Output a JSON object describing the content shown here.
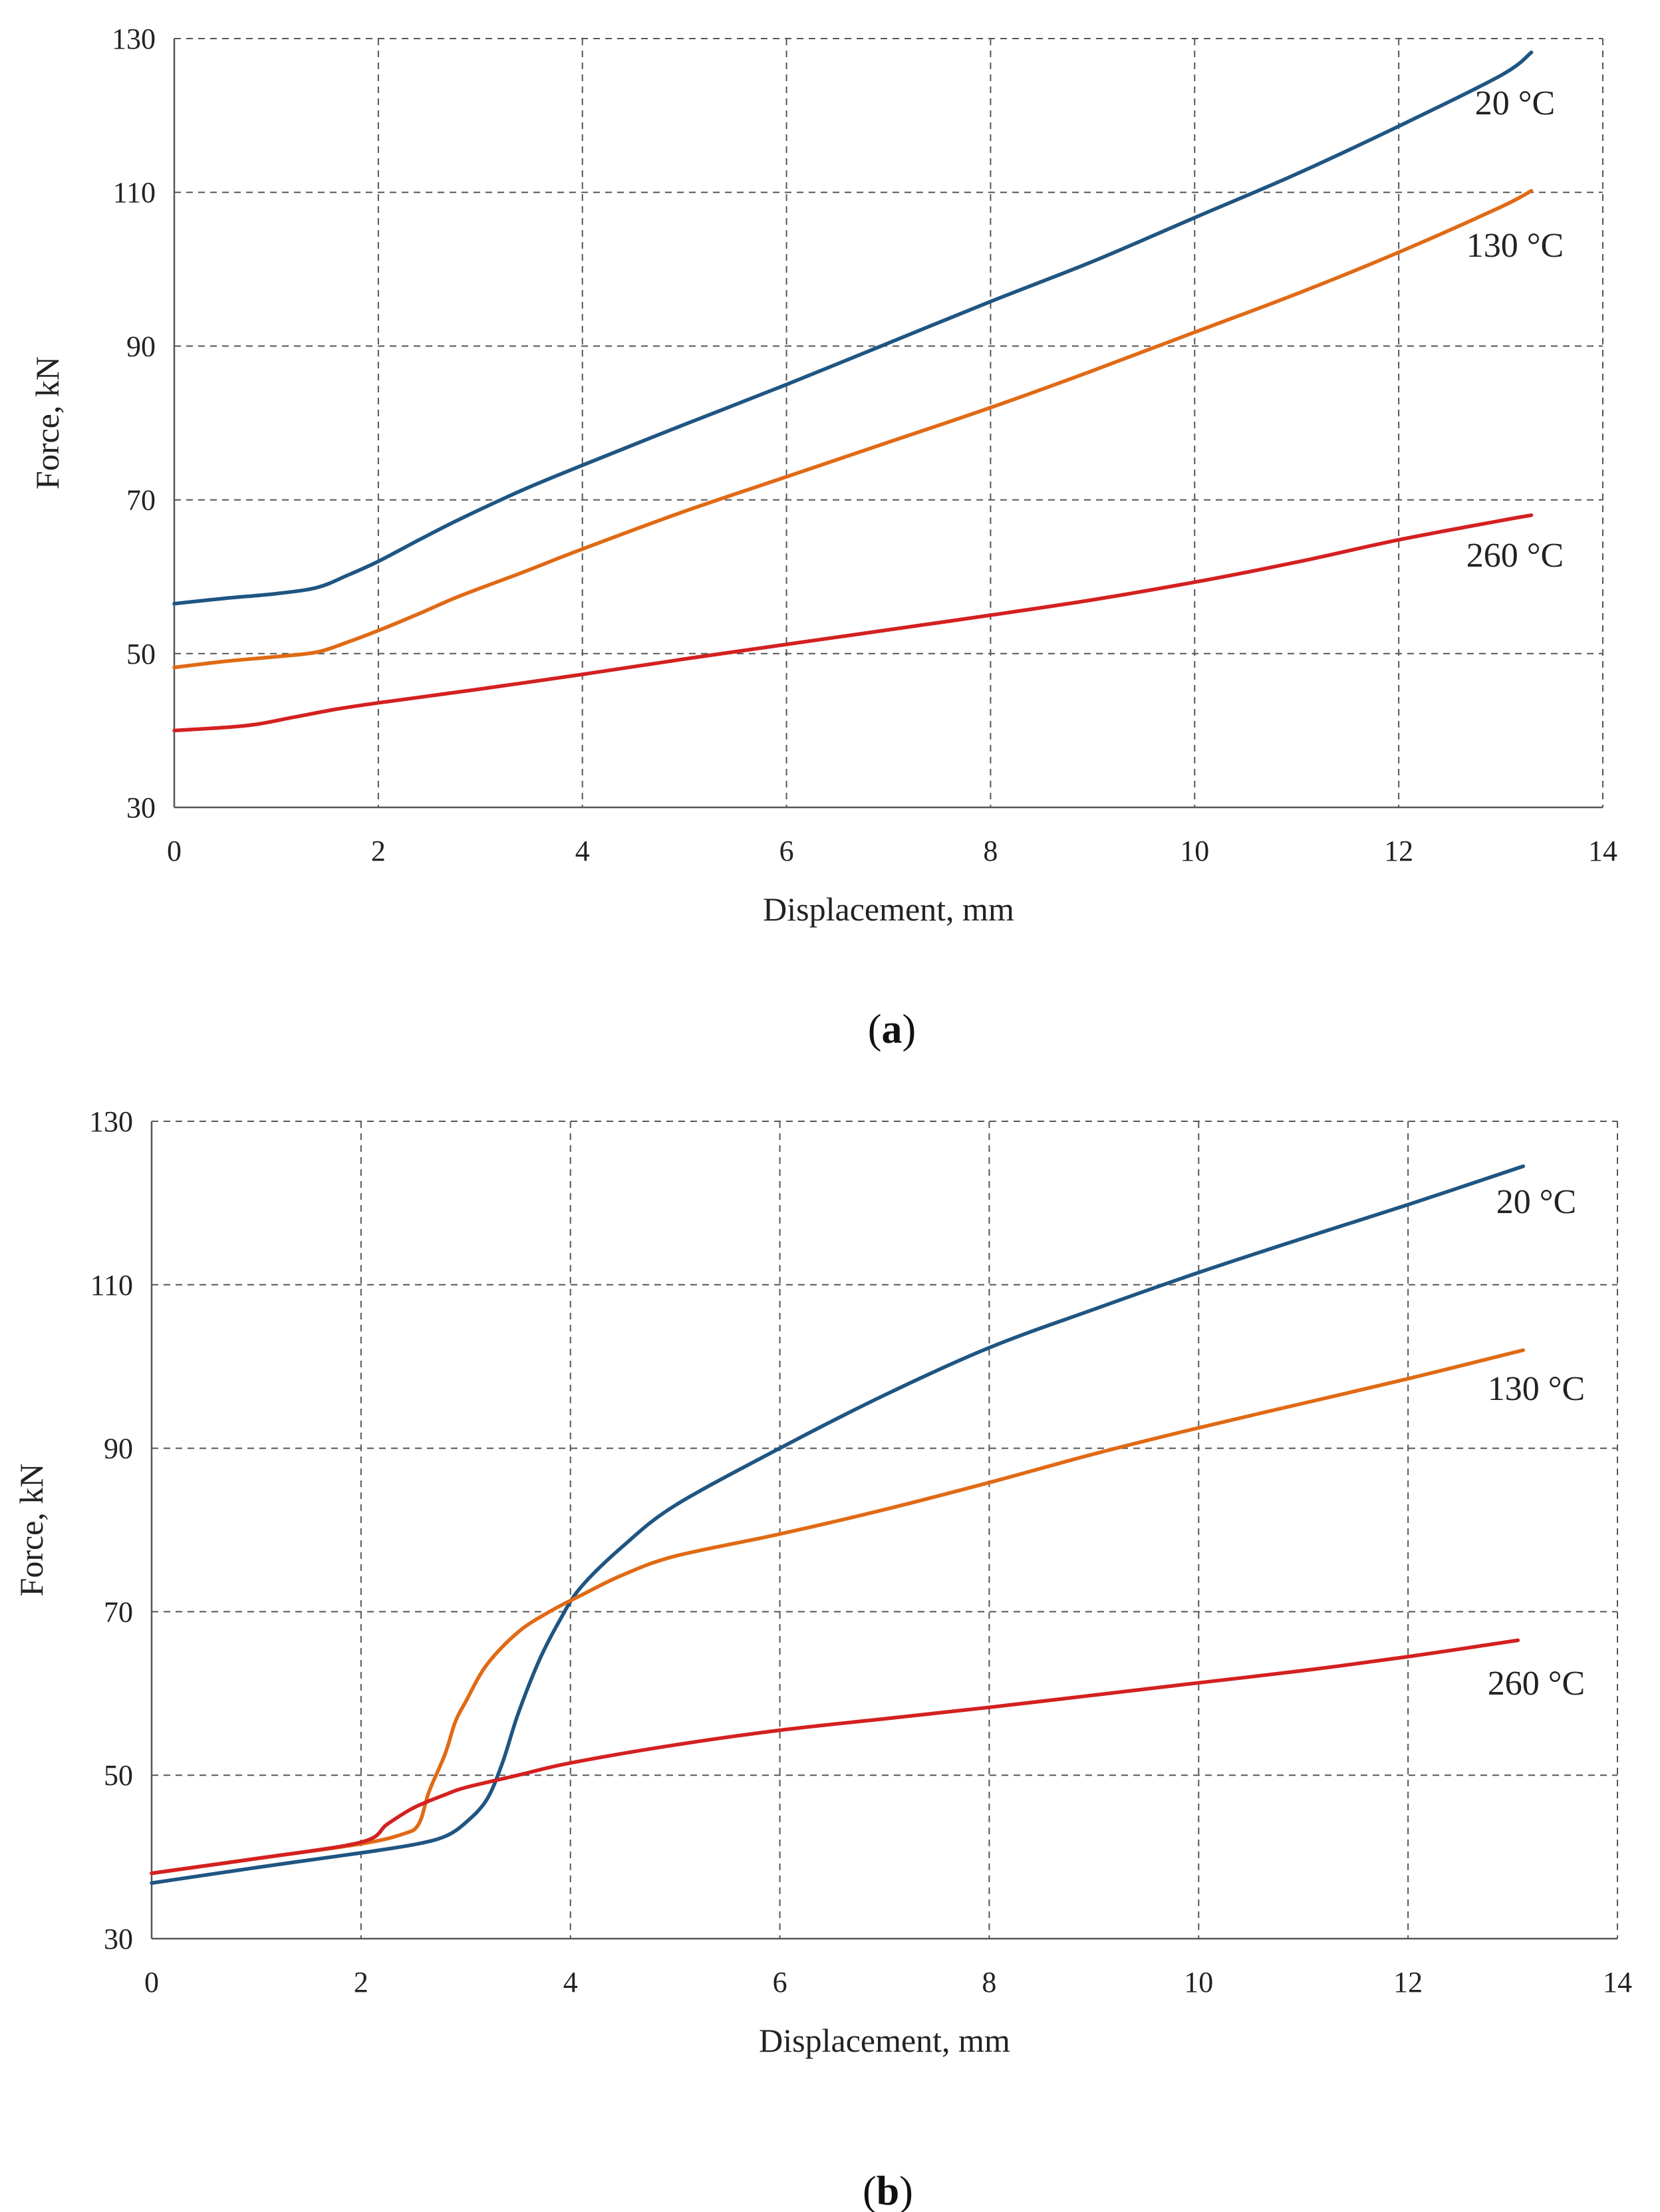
{
  "chart_data": [
    {
      "type": "line",
      "panel_label": "a",
      "xlabel": "Displacement, mm",
      "ylabel": "Force, kN",
      "xlim": [
        0,
        14
      ],
      "ylim": [
        30,
        130
      ],
      "xticks": [
        "0",
        "2",
        "4",
        "6",
        "8",
        "10",
        "12",
        "14"
      ],
      "yticks": [
        "30",
        "50",
        "70",
        "90",
        "110",
        "130"
      ],
      "grid": true,
      "series": [
        {
          "name": "20 °C",
          "color": "#1f5582",
          "x": [
            0,
            0.5,
            1.0,
            1.4,
            1.7,
            2.0,
            2.4,
            2.8,
            3.4,
            4.0,
            5.0,
            6.0,
            7.0,
            8.0,
            9.0,
            10.0,
            11.0,
            12.0,
            13.0,
            13.3
          ],
          "y": [
            56.5,
            57.2,
            57.8,
            58.6,
            60.2,
            62.0,
            64.8,
            67.5,
            71.2,
            74.5,
            79.8,
            85.0,
            90.4,
            95.8,
            101.0,
            106.7,
            112.4,
            118.6,
            125.2,
            128.2
          ]
        },
        {
          "name": "130 °C",
          "color": "#e06a14",
          "x": [
            0,
            0.5,
            1.0,
            1.4,
            1.7,
            2.0,
            2.4,
            2.8,
            3.4,
            4.0,
            5.0,
            6.0,
            7.0,
            8.0,
            9.0,
            10.0,
            11.0,
            12.0,
            13.0,
            13.3
          ],
          "y": [
            48.2,
            49.0,
            49.6,
            50.2,
            51.5,
            53.0,
            55.2,
            57.5,
            60.5,
            63.6,
            68.5,
            73.0,
            77.5,
            82.0,
            86.8,
            91.8,
            96.8,
            102.2,
            108.1,
            110.2
          ]
        },
        {
          "name": "260 °C",
          "color": "#d42020",
          "x": [
            0,
            0.5,
            0.8,
            1.2,
            1.6,
            2.0,
            3.0,
            4.0,
            5.0,
            6.0,
            7.0,
            8.0,
            9.0,
            10.0,
            11.0,
            12.0,
            13.0,
            13.3
          ],
          "y": [
            40.0,
            40.4,
            40.8,
            41.8,
            42.8,
            43.6,
            45.4,
            47.3,
            49.3,
            51.2,
            53.1,
            55.0,
            57.0,
            59.3,
            61.9,
            64.8,
            67.3,
            68.0
          ]
        }
      ]
    },
    {
      "type": "line",
      "panel_label": "b",
      "xlabel": "Displacement, mm",
      "ylabel": "Force, kN",
      "xlim": [
        0,
        14
      ],
      "ylim": [
        30,
        130
      ],
      "xticks": [
        "0",
        "2",
        "4",
        "6",
        "8",
        "10",
        "12",
        "14"
      ],
      "yticks": [
        "30",
        "50",
        "70",
        "90",
        "110",
        "130"
      ],
      "grid": true,
      "series": [
        {
          "name": "20 °C",
          "color": "#1f5582",
          "x": [
            0,
            1.0,
            2.0,
            2.5,
            2.8,
            3.0,
            3.2,
            3.35,
            3.5,
            3.7,
            3.9,
            4.1,
            4.5,
            5.0,
            6.0,
            7.0,
            8.0,
            9.0,
            10.0,
            11.0,
            12.0,
            13.1
          ],
          "y": [
            36.8,
            38.7,
            40.5,
            41.5,
            42.5,
            44.2,
            47.0,
            51.5,
            57.5,
            64.0,
            69.0,
            73.0,
            78.0,
            83.0,
            90.0,
            96.5,
            102.3,
            107.0,
            111.5,
            115.7,
            119.8,
            124.5
          ]
        },
        {
          "name": "130 °C",
          "color": "#e06a14",
          "x": [
            0,
            1.0,
            2.0,
            2.4,
            2.55,
            2.65,
            2.8,
            2.9,
            3.0,
            3.2,
            3.5,
            3.8,
            4.1,
            4.5,
            5.0,
            6.0,
            7.0,
            8.0,
            9.0,
            10.0,
            11.0,
            12.0,
            13.1
          ],
          "y": [
            38.0,
            39.8,
            41.6,
            42.8,
            44.0,
            48.0,
            52.5,
            56.5,
            59.0,
            63.5,
            67.5,
            70.0,
            72.0,
            74.5,
            76.8,
            79.5,
            82.5,
            85.8,
            89.3,
            92.5,
            95.5,
            98.5,
            102.0
          ]
        },
        {
          "name": "260 °C",
          "color": "#d42020",
          "x": [
            0,
            1.0,
            2.0,
            2.25,
            2.5,
            2.8,
            3.0,
            3.5,
            4.0,
            5.0,
            6.0,
            7.0,
            8.0,
            9.0,
            10.0,
            11.0,
            12.0,
            13.05
          ],
          "y": [
            38.0,
            39.8,
            41.8,
            44.0,
            46.0,
            47.6,
            48.5,
            50.0,
            51.5,
            53.7,
            55.5,
            56.9,
            58.3,
            59.8,
            61.3,
            62.8,
            64.5,
            66.5
          ]
        }
      ]
    }
  ]
}
